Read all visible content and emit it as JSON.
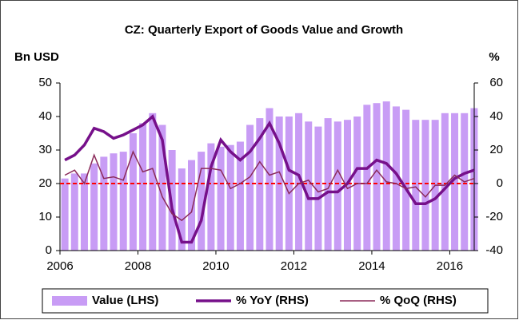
{
  "chart_data": {
    "type": "bar_line_combo",
    "title": "CZ: Quarterly Export of Goods Value and Growth",
    "y_label": "Bn USD",
    "y2_label": "%",
    "x": [
      2006.125,
      2006.375,
      2006.625,
      2006.875,
      2007.125,
      2007.375,
      2007.625,
      2007.875,
      2008.125,
      2008.375,
      2008.625,
      2008.875,
      2009.125,
      2009.375,
      2009.625,
      2009.875,
      2010.125,
      2010.375,
      2010.625,
      2010.875,
      2011.125,
      2011.375,
      2011.625,
      2011.875,
      2012.125,
      2012.375,
      2012.625,
      2012.875,
      2013.125,
      2013.375,
      2013.625,
      2013.875,
      2014.125,
      2014.375,
      2014.625,
      2014.875,
      2015.125,
      2015.375,
      2015.625,
      2015.875,
      2016.125,
      2016.375,
      2016.625
    ],
    "series": [
      {
        "name": "Value (LHS)",
        "kind": "bar",
        "axis": "y",
        "color": "#c89cf5",
        "values": [
          21.5,
          23,
          23,
          26,
          28,
          29,
          29.5,
          35,
          38,
          41,
          37.5,
          30,
          24.5,
          27,
          29.5,
          32,
          31,
          31.5,
          32.5,
          37.5,
          39.5,
          42.5,
          40,
          40,
          41,
          38.5,
          37,
          39.5,
          38.5,
          39,
          40,
          43.5,
          44,
          44.5,
          43,
          42,
          39,
          39,
          39,
          41,
          41,
          41,
          42.5
        ]
      },
      {
        "name": "% YoY (RHS)",
        "kind": "line",
        "axis": "y2",
        "color": "#76108a",
        "values": [
          14,
          17,
          23,
          33,
          31,
          27,
          29,
          32,
          35,
          40,
          26,
          -15,
          -35,
          -35,
          -22,
          10,
          26,
          19,
          14,
          19,
          27,
          36,
          24,
          8,
          5,
          -9,
          -9,
          -5,
          -5,
          0,
          9,
          9,
          14,
          12,
          6,
          -3,
          -12,
          -12,
          -9,
          -3,
          3,
          6,
          8
        ]
      },
      {
        "name": "% QoQ (RHS)",
        "kind": "line",
        "axis": "y2",
        "color": "#8b2a5a",
        "values": [
          5,
          8,
          0,
          17,
          3,
          4,
          2,
          19,
          7,
          9,
          -8,
          -18,
          -22,
          -17,
          9,
          9,
          8,
          -3,
          0,
          4,
          13,
          5,
          7,
          -6,
          0,
          2,
          -5,
          -3,
          8,
          -3,
          0,
          0,
          8,
          1,
          0,
          -3,
          -2,
          -8,
          -1,
          -1,
          5,
          1,
          3
        ]
      }
    ],
    "xlim": [
      2006,
      2016.75
    ],
    "xticks": [
      2006,
      2008,
      2010,
      2012,
      2014,
      2016
    ],
    "ylim": [
      0,
      50
    ],
    "yticks": [
      0,
      10,
      20,
      30,
      40,
      50
    ],
    "y2lim": [
      -40,
      60
    ],
    "y2ticks": [
      -40,
      -20,
      0,
      20,
      40,
      60
    ],
    "reference_line": {
      "axis": "y2",
      "value": 0,
      "color": "#ff0000"
    },
    "legend": "bottom"
  }
}
